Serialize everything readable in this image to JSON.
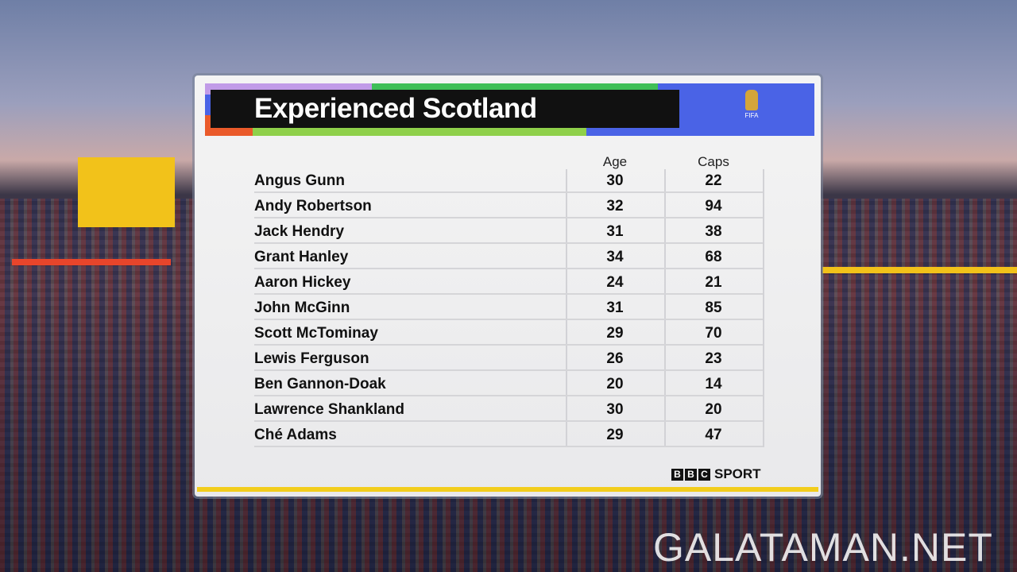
{
  "header": {
    "title": "Experienced Scotland",
    "logo_text": "FIFA"
  },
  "table": {
    "columns": [
      "Age",
      "Caps"
    ],
    "rows": [
      [
        "Angus Gunn",
        30,
        22
      ],
      [
        "Andy Robertson",
        32,
        94
      ],
      [
        "Jack Hendry",
        31,
        38
      ],
      [
        "Grant Hanley",
        34,
        68
      ],
      [
        "Aaron Hickey",
        24,
        21
      ],
      [
        "John McGinn",
        31,
        85
      ],
      [
        "Scott McTominay",
        29,
        70
      ],
      [
        "Lewis Ferguson",
        26,
        23
      ],
      [
        "Ben Gannon-Doak",
        20,
        14
      ],
      [
        "Lawrence Shankland",
        30,
        20
      ],
      [
        "Ché Adams",
        29,
        47
      ]
    ]
  },
  "footer": {
    "brand": [
      "B",
      "B",
      "C"
    ],
    "brand_suffix": "SPORT"
  },
  "watermark": "GALATAMAN.NET"
}
